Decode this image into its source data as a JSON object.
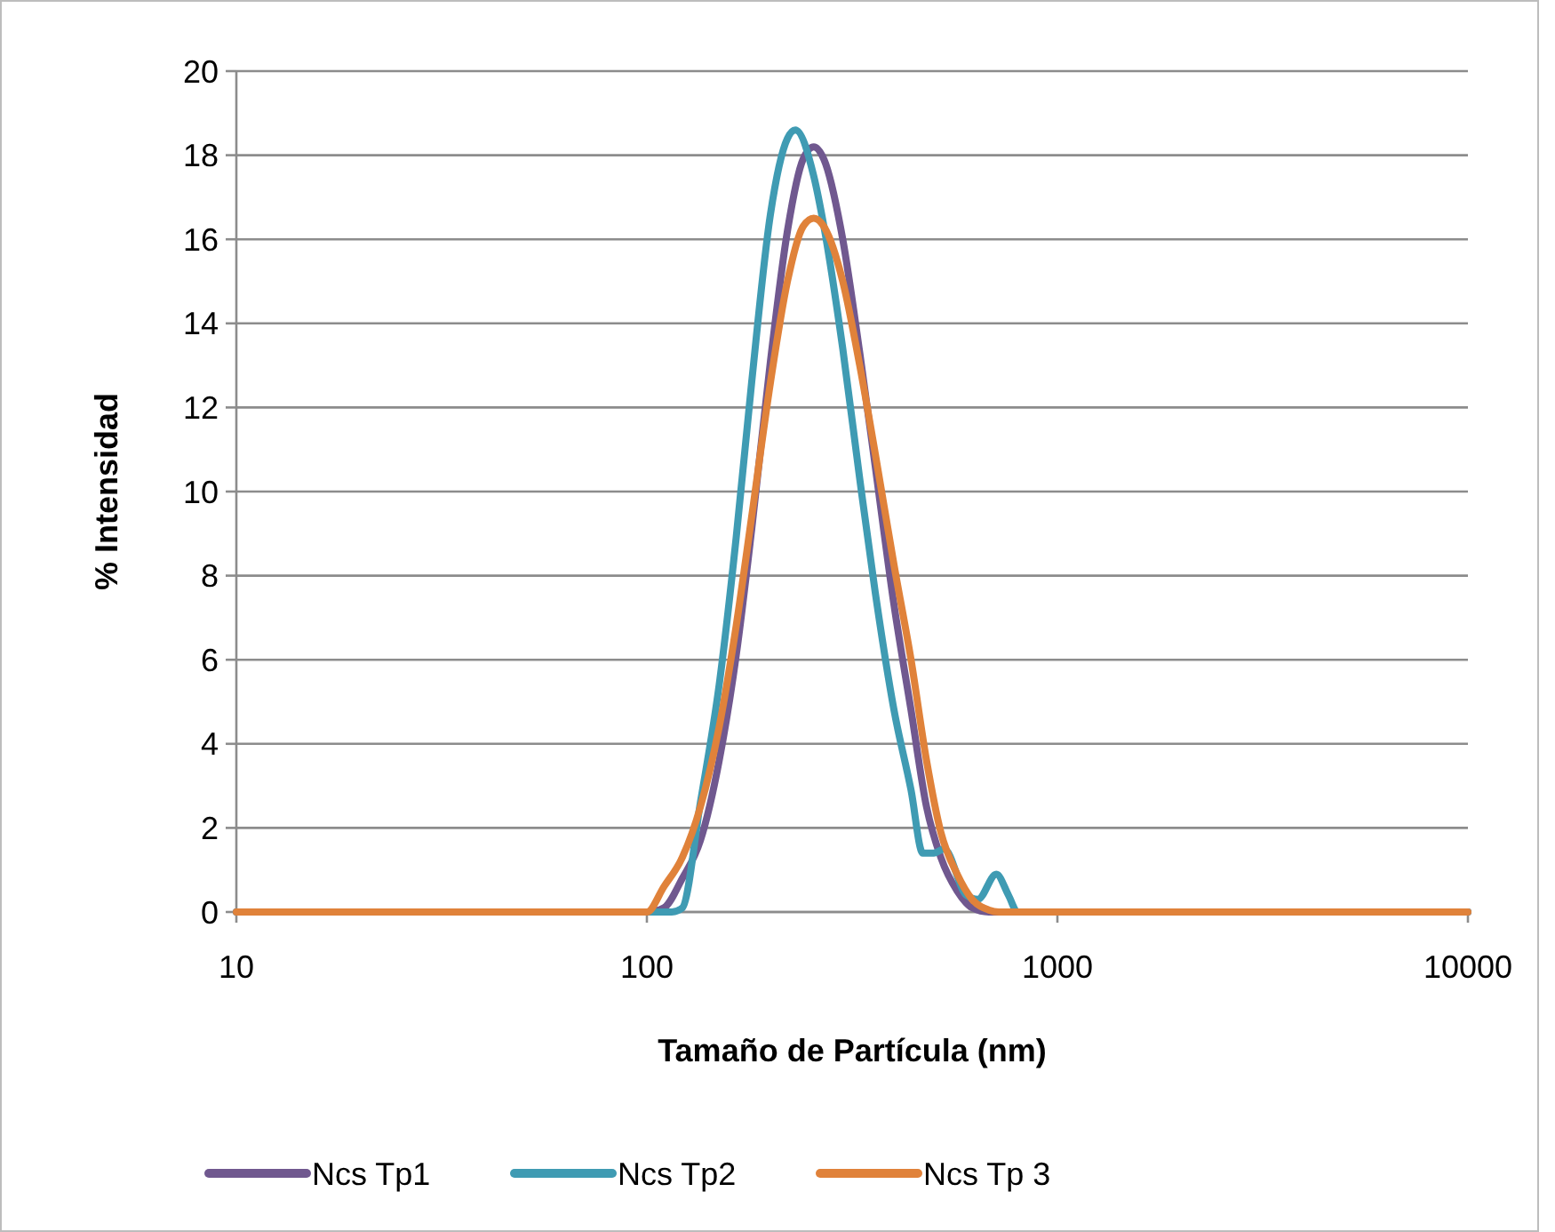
{
  "chart_data": {
    "type": "line",
    "xlabel": "Tamaño de Partícula (nm)",
    "ylabel": "% Intensidad",
    "log": "x",
    "grid": "y",
    "legend": "bottom",
    "marker": "none",
    "line_style": "solid",
    "xlim": [
      10,
      10000
    ],
    "xticks": [
      10,
      100,
      1000,
      10000
    ],
    "ylim": [
      0,
      20
    ],
    "yticks": [
      0,
      2,
      4,
      6,
      8,
      10,
      12,
      14,
      16,
      18,
      20
    ],
    "series": [
      {
        "name": "Ncs Tp1",
        "color": "#70588f",
        "x": [
          10,
          100,
          110,
          122,
          135,
          150,
          165,
          180,
          200,
          220,
          240,
          255,
          270,
          300,
          330,
          360,
          400,
          440,
          480,
          520,
          570,
          620,
          680,
          10000
        ],
        "values": [
          0,
          0,
          0.1,
          0.8,
          1.7,
          3.6,
          6.1,
          9.1,
          13.1,
          16.2,
          17.9,
          18.2,
          17.9,
          16.0,
          13.3,
          10.6,
          7.3,
          4.8,
          2.5,
          1.3,
          0.5,
          0.1,
          0,
          0
        ]
      },
      {
        "name": "Ncs Tp2",
        "color": "#3f9bb3",
        "x": [
          10,
          100,
          115,
          122,
          135,
          150,
          165,
          180,
          200,
          220,
          230,
          255,
          270,
          300,
          330,
          360,
          400,
          440,
          470,
          500,
          530,
          600,
          640,
          710,
          760,
          800,
          10000
        ],
        "values": [
          0,
          0,
          0,
          0.1,
          2.6,
          5.4,
          8.9,
          12.6,
          16.6,
          18.4,
          18.6,
          17.5,
          16.3,
          13.4,
          10.3,
          7.6,
          4.8,
          2.9,
          1.4,
          1.4,
          1.5,
          0.4,
          0.3,
          0.9,
          0.4,
          0,
          0
        ]
      },
      {
        "name": "Ncs Tp 3",
        "color": "#e0823a",
        "x": [
          10,
          100,
          110,
          122,
          135,
          150,
          165,
          180,
          200,
          220,
          240,
          255,
          270,
          300,
          330,
          360,
          400,
          440,
          480,
          520,
          570,
          620,
          680,
          720,
          10000
        ],
        "values": [
          0,
          0,
          0.6,
          1.3,
          2.5,
          4.4,
          6.8,
          9.4,
          12.6,
          15.0,
          16.3,
          16.5,
          16.3,
          15.0,
          13.0,
          10.9,
          8.25,
          6.0,
          3.6,
          1.9,
          0.9,
          0.3,
          0.05,
          0,
          0
        ]
      }
    ]
  }
}
